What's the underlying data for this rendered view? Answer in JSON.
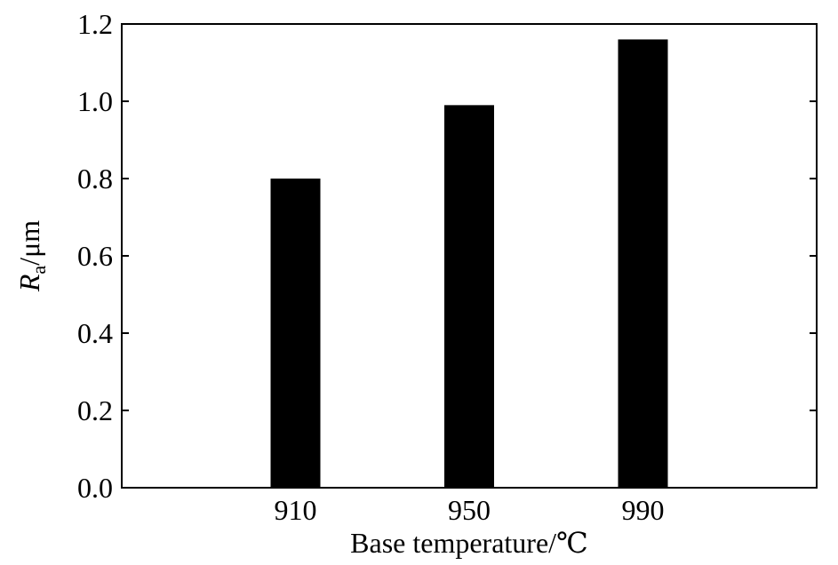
{
  "chart_data": {
    "type": "bar",
    "categories": [
      "910",
      "950",
      "990"
    ],
    "values": [
      0.8,
      0.99,
      1.16
    ],
    "xlabel": "Base temperature/℃",
    "ylabel": {
      "symbol": "R",
      "subscript": "a",
      "unit": "/μm"
    },
    "ylim": [
      0,
      1.2
    ],
    "yticks": [
      "0.0",
      "0.2",
      "0.4",
      "0.6",
      "0.8",
      "1.0",
      "1.2"
    ],
    "grid": false,
    "legend": "none",
    "bar_color": "#000000",
    "axis_color": "#000000",
    "background": "#ffffff"
  }
}
